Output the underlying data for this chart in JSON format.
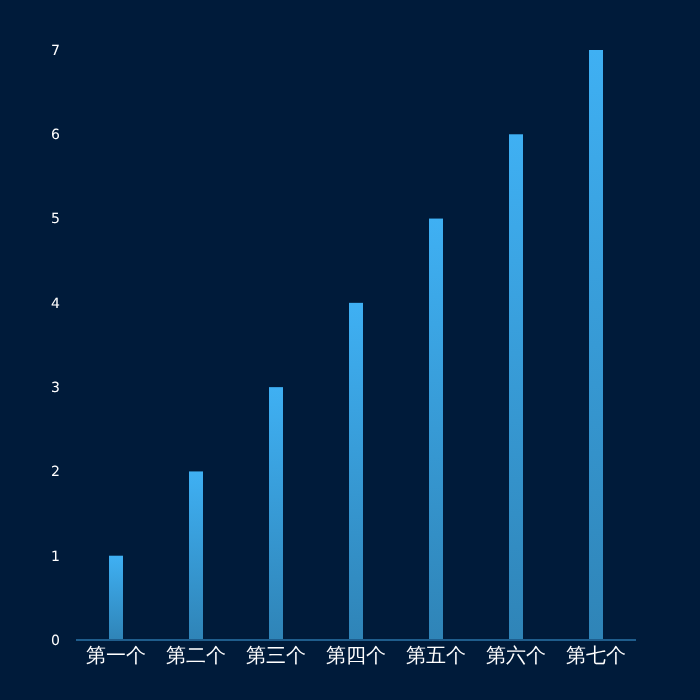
{
  "chart_data": {
    "type": "bar",
    "categories": [
      "第一个",
      "第二个",
      "第三个",
      "第四个",
      "第五个",
      "第六个",
      "第七个"
    ],
    "values": [
      1,
      2,
      3,
      4,
      5,
      6,
      7
    ],
    "color": "#3fb0f3",
    "ylim": [
      0,
      7
    ],
    "yticks": [
      0,
      1,
      2,
      3,
      4,
      5,
      6,
      7
    ],
    "grid": false
  }
}
